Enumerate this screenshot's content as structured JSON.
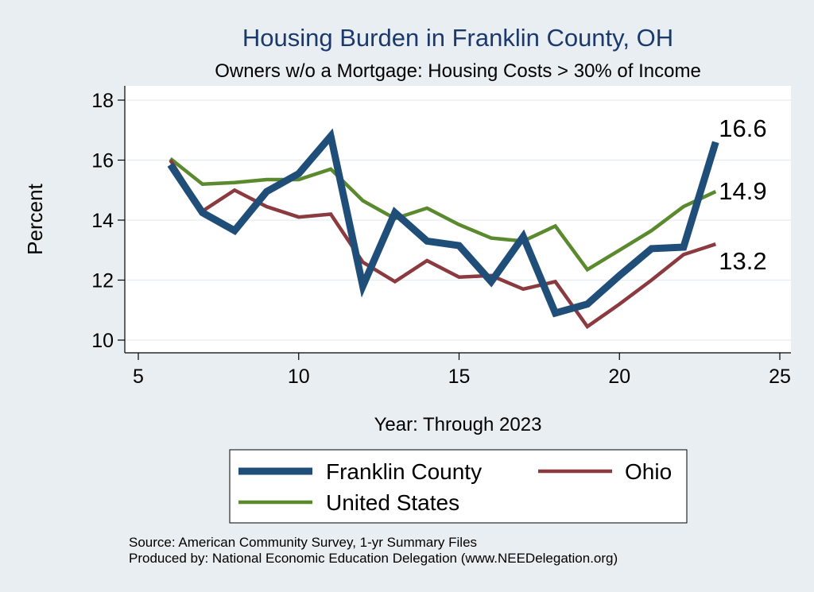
{
  "chart_data": {
    "type": "line",
    "title": "Housing Burden in Franklin County, OH",
    "subtitle": "Owners w/o a Mortgage: Housing Costs > 30% of Income",
    "xlabel": "Year: Through 2023",
    "ylabel": "Percent",
    "xlim": [
      5,
      25
    ],
    "ylim": [
      10,
      18
    ],
    "xticks": [
      5,
      10,
      15,
      20,
      25
    ],
    "yticks": [
      10,
      12,
      14,
      16,
      18
    ],
    "grid": true,
    "legend_position": "bottom",
    "x": [
      6,
      7,
      8,
      9,
      10,
      11,
      12,
      13,
      14,
      15,
      16,
      17,
      18,
      19,
      20,
      21,
      22,
      23
    ],
    "series": [
      {
        "name": "Franklin County",
        "color": "#1f4e79",
        "width": "thick",
        "values": [
          15.85,
          14.25,
          13.65,
          14.95,
          15.55,
          16.8,
          11.8,
          14.25,
          13.3,
          13.15,
          11.95,
          13.45,
          10.9,
          11.2,
          12.15,
          13.05,
          13.1,
          16.6
        ],
        "end_label": "16.6"
      },
      {
        "name": "Ohio",
        "color": "#8b3a3f",
        "width": "medium",
        "values": [
          16.0,
          14.3,
          15.0,
          14.45,
          14.1,
          14.2,
          12.6,
          11.95,
          12.65,
          12.1,
          12.15,
          11.7,
          11.95,
          10.45,
          11.2,
          12.0,
          12.85,
          13.2
        ],
        "end_label": "13.2"
      },
      {
        "name": "United States",
        "color": "#5b8a2e",
        "width": "medium",
        "values": [
          16.05,
          15.2,
          15.25,
          15.35,
          15.35,
          15.7,
          14.65,
          14.05,
          14.4,
          13.85,
          13.4,
          13.3,
          13.8,
          12.35,
          13.0,
          13.65,
          14.45,
          14.95
        ],
        "end_label": "14.9"
      }
    ]
  },
  "source": "Source: American Community Survey, 1-yr Summary Files",
  "producer": "Produced by: National Economic Education Delegation (www.NEEDelegation.org)"
}
